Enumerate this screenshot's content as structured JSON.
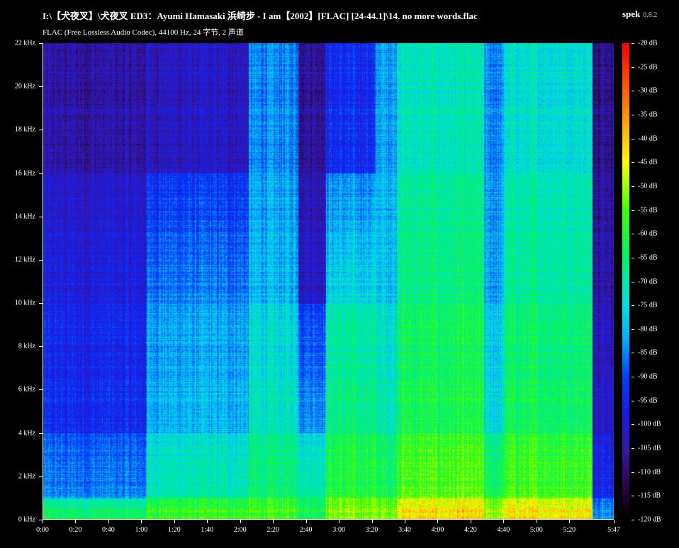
{
  "header": {
    "file_path": "I:\\【犬夜叉】\\犬夜叉 ED3：Ayumi Hamasaki 浜崎步 - I am【2002】[FLAC] [24-44.1]\\14. no more words.flac",
    "app_name": "spek",
    "app_version": "0.8.2",
    "stream_info": "FLAC (Free Lossless Audio Codec), 44100 Hz, 24 字节, 2 声道"
  },
  "chart_data": {
    "type": "heatmap",
    "title": "",
    "xlabel": "",
    "ylabel": "",
    "x_unit": "time (m:ss)",
    "y_unit": "kHz",
    "xlim_seconds": [
      0,
      347
    ],
    "ylim_khz": [
      0,
      22
    ],
    "x_ticks": [
      "0:00",
      "0:20",
      "0:40",
      "1:00",
      "1:20",
      "1:40",
      "2:00",
      "2:20",
      "2:40",
      "3:00",
      "3:20",
      "3:40",
      "4:00",
      "4:20",
      "4:40",
      "5:00",
      "5:20",
      "5:47"
    ],
    "x_tick_seconds": [
      0,
      20,
      40,
      60,
      80,
      100,
      120,
      140,
      160,
      180,
      200,
      220,
      240,
      260,
      280,
      300,
      320,
      347
    ],
    "y_ticks": [
      "0 kHz",
      "2 kHz",
      "4 kHz",
      "6 kHz",
      "8 kHz",
      "10 kHz",
      "12 kHz",
      "14 kHz",
      "16 kHz",
      "18 kHz",
      "20 kHz",
      "22 kHz"
    ],
    "y_tick_values": [
      0,
      2,
      4,
      6,
      8,
      10,
      12,
      14,
      16,
      18,
      20,
      22
    ],
    "colorbar": {
      "range_db": [
        -120,
        -20
      ],
      "ticks": [
        "-20 dB",
        "-25 dB",
        "-30 dB",
        "-35 dB",
        "-40 dB",
        "-45 dB",
        "-50 dB",
        "-55 dB",
        "-60 dB",
        "-65 dB",
        "-70 dB",
        "-75 dB",
        "-80 dB",
        "-85 dB",
        "-90 dB",
        "-95 dB",
        "-100 dB",
        "-105 dB",
        "-110 dB",
        "-115 dB",
        "-120 dB"
      ],
      "colors": [
        "#000000",
        "#2a0a50",
        "#3a18a8",
        "#1a1ae8",
        "#0040ff",
        "#00b0ff",
        "#00e0e0",
        "#00f070",
        "#40ff00",
        "#ffff00",
        "#ff8000",
        "#ff0000"
      ]
    },
    "approx_levels_db": {
      "frequency_bands_khz": [
        [
          0,
          1
        ],
        [
          1,
          4
        ],
        [
          4,
          10
        ],
        [
          10,
          16
        ],
        [
          16,
          22
        ]
      ],
      "segments": [
        {
          "t": [
            0,
            63
          ],
          "db": [
            -60,
            -85,
            -95,
            -98,
            -105
          ]
        },
        {
          "t": [
            63,
            125
          ],
          "db": [
            -55,
            -70,
            -80,
            -85,
            -102
          ]
        },
        {
          "t": [
            125,
            155
          ],
          "db": [
            -55,
            -65,
            -72,
            -80,
            -85
          ]
        },
        {
          "t": [
            155,
            172
          ],
          "db": [
            -60,
            -68,
            -82,
            -100,
            -105
          ]
        },
        {
          "t": [
            172,
            202
          ],
          "db": [
            -50,
            -60,
            -66,
            -75,
            -95
          ]
        },
        {
          "t": [
            202,
            215
          ],
          "db": [
            -50,
            -62,
            -70,
            -78,
            -82
          ]
        },
        {
          "t": [
            215,
            268
          ],
          "db": [
            -40,
            -55,
            -62,
            -66,
            -72
          ]
        },
        {
          "t": [
            268,
            280
          ],
          "db": [
            -48,
            -62,
            -75,
            -82,
            -85
          ]
        },
        {
          "t": [
            280,
            334
          ],
          "db": [
            -40,
            -56,
            -63,
            -68,
            -74
          ]
        },
        {
          "t": [
            334,
            347
          ],
          "db": [
            -80,
            -95,
            -100,
            -103,
            -106
          ]
        }
      ]
    }
  }
}
